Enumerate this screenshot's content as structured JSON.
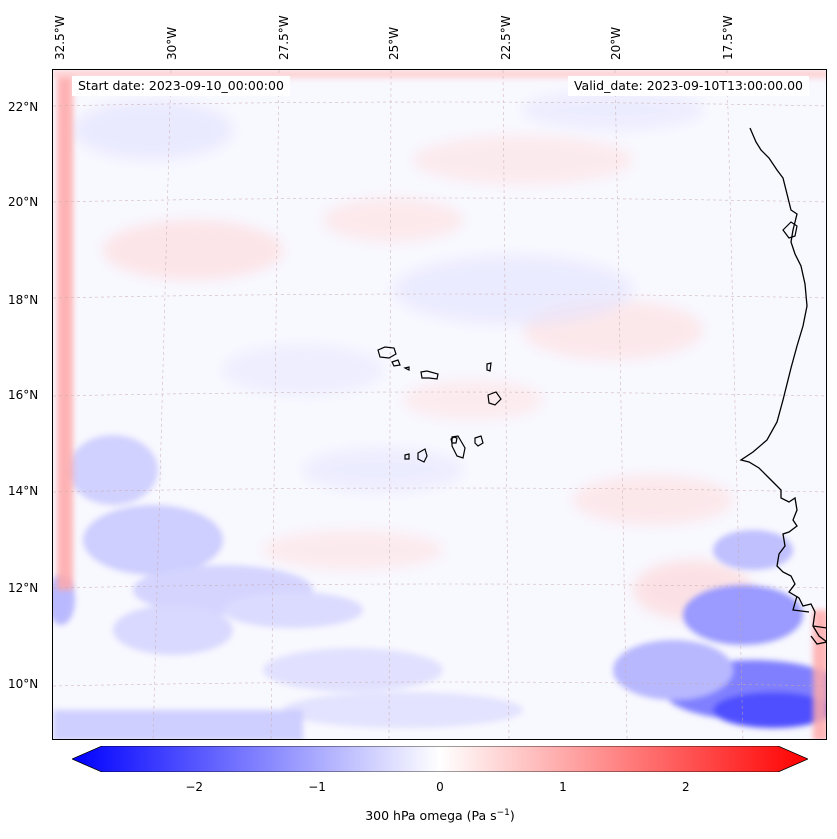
{
  "map": {
    "lon_labels": [
      "32.5°W",
      "30°W",
      "27.5°W",
      "25°W",
      "22.5°W",
      "20°W",
      "17.5°W"
    ],
    "lat_labels": [
      "22°N",
      "20°N",
      "18°N",
      "16°N",
      "14°N",
      "12°N",
      "10°N"
    ],
    "start_date": "Start date: 2023-09-10_00:00:00",
    "valid_date": "Valid_date: 2023-09-10T13:00:00.00",
    "colormap": {
      "negative": "#0000ff",
      "zero": "#ffffff",
      "positive": "#ff0000"
    },
    "coastline_color": "#000000"
  },
  "colorbar": {
    "ticks": [
      "−2",
      "−1",
      "0",
      "1",
      "2"
    ],
    "range": [
      -2.75,
      2.75
    ],
    "label": "300 hPa omega (Pa s",
    "label_sup": "−1",
    "label_end": ")"
  }
}
